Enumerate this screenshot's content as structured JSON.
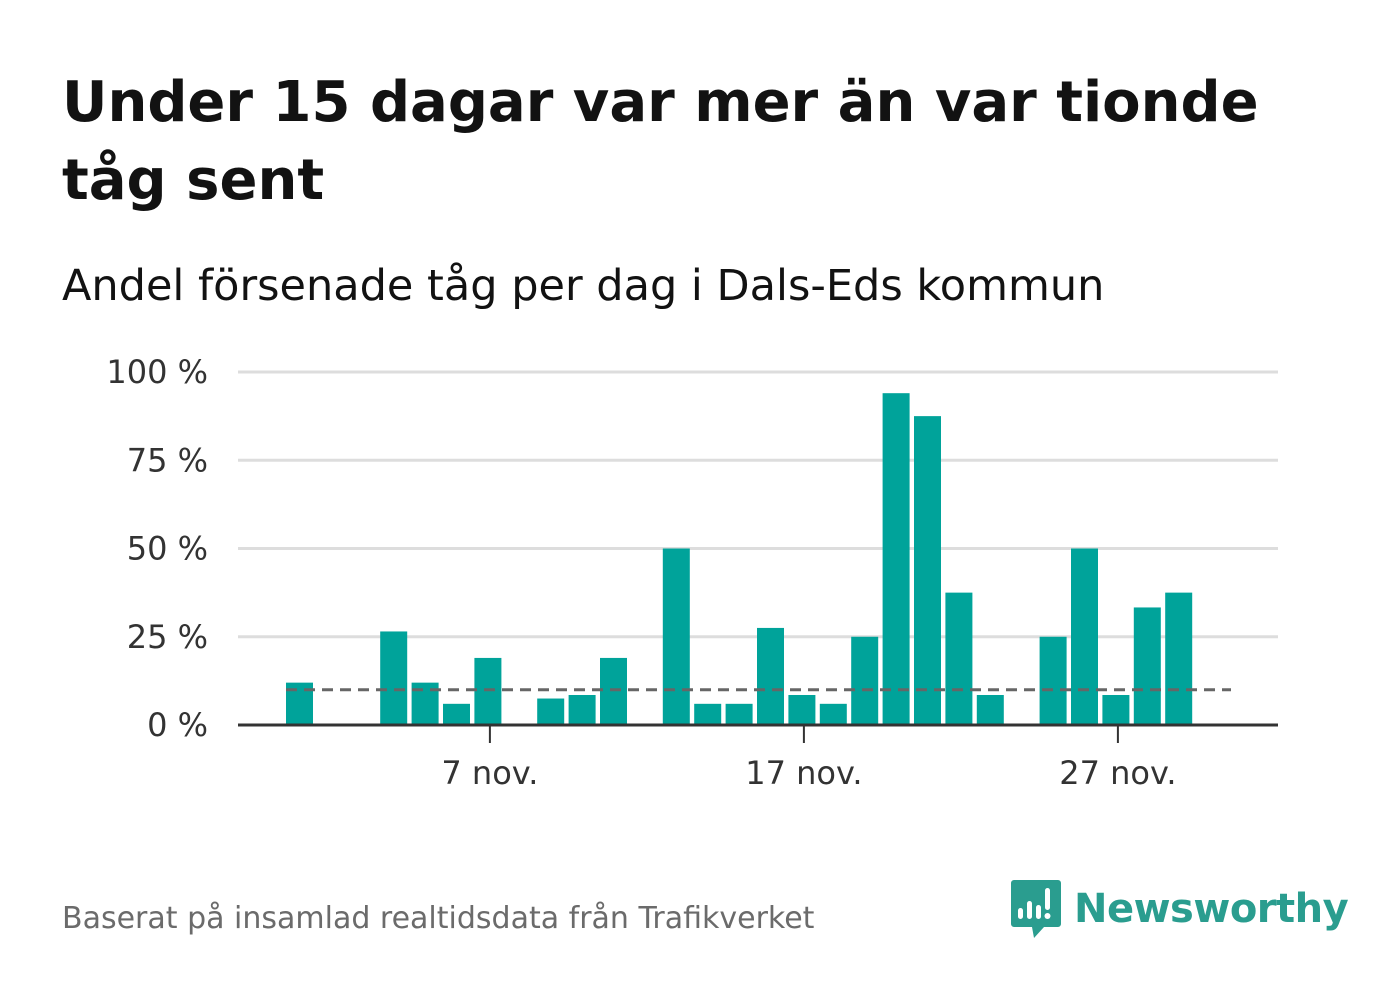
{
  "title": "Under 15 dagar var mer än var tionde tåg sent",
  "subtitle": "Andel försenade tåg per dag i Dals-Eds kommun",
  "source": "Baserat på insamlad realtidsdata från Trafikverket",
  "brand": {
    "name": "Newsworthy",
    "icon": "newsworthy-logo-icon",
    "color": "#2a9d8f"
  },
  "colors": {
    "bar": "#00a39a",
    "reference_line": "#666666",
    "grid": "#dddddd",
    "axis": "#333333"
  },
  "chart_data": {
    "type": "bar",
    "x": [
      "1 nov.",
      "2 nov.",
      "3 nov.",
      "4 nov.",
      "5 nov.",
      "6 nov.",
      "7 nov.",
      "8 nov.",
      "9 nov.",
      "10 nov.",
      "11 nov.",
      "12 nov.",
      "13 nov.",
      "14 nov.",
      "15 nov.",
      "16 nov.",
      "17 nov.",
      "18 nov.",
      "19 nov.",
      "20 nov.",
      "21 nov.",
      "22 nov.",
      "23 nov.",
      "24 nov.",
      "25 nov.",
      "26 nov.",
      "27 nov.",
      "28 nov.",
      "29 nov.",
      "30 nov."
    ],
    "values": [
      12,
      null,
      null,
      26.5,
      12,
      6,
      19,
      null,
      7.5,
      8.5,
      19,
      null,
      50,
      6,
      6,
      27.5,
      8.5,
      6,
      25,
      94,
      87.5,
      37.5,
      8.5,
      null,
      25,
      50,
      8.5,
      33.3,
      37.5,
      null
    ],
    "reference_line": 10,
    "ylim": [
      0,
      100
    ],
    "yticks": [
      {
        "value": 0,
        "label": "0 %"
      },
      {
        "value": 25,
        "label": "25 %"
      },
      {
        "value": 50,
        "label": "50 %"
      },
      {
        "value": 75,
        "label": "75 %"
      },
      {
        "value": 100,
        "label": "100 %"
      }
    ],
    "xticks": [
      {
        "index": 6,
        "label": "7 nov."
      },
      {
        "index": 16,
        "label": "17 nov."
      },
      {
        "index": 26,
        "label": "27 nov."
      }
    ],
    "grid": true,
    "xlabel": "",
    "ylabel": ""
  }
}
